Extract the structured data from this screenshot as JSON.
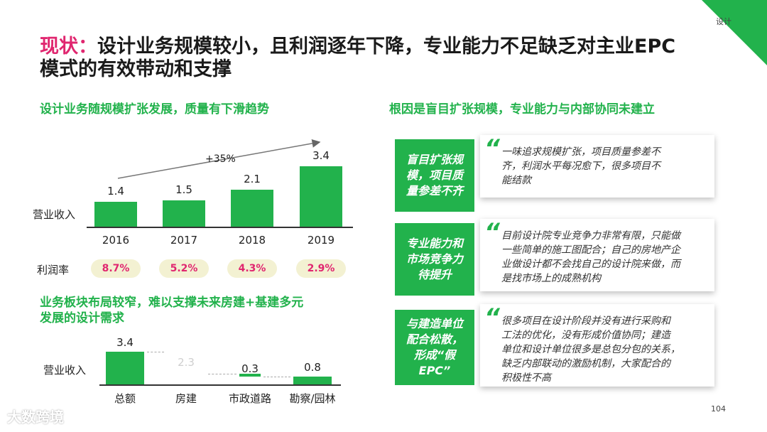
{
  "corner_label": "设计",
  "title": {
    "prefix": "现状：",
    "line1": "设计业务规模较小，且利润逐年下降，专业能力不足缺乏对主业EPC",
    "line2": "模式的有效带动和支撑"
  },
  "left_top": {
    "section_title": "设计业务随规模扩张发展，质量有下滑趋势",
    "growth_label": "+35%",
    "ylabel": "营业收入",
    "profit_label": "利润率",
    "chart_data": {
      "type": "bar",
      "categories": [
        "2016",
        "2017",
        "2018",
        "2019"
      ],
      "values": [
        1.4,
        1.5,
        2.1,
        3.4
      ],
      "value_labels": [
        "1.4",
        "1.5",
        "2.1",
        "3.4"
      ],
      "ylabel": "营业收入",
      "color": "#22b24c"
    },
    "profit_rates": [
      "8.7%",
      "5.2%",
      "4.3%",
      "2.9%"
    ]
  },
  "left_bottom": {
    "section_title_line1": "业务板块布局较窄，难以支撑未来房建+基建多元",
    "section_title_line2": "发展的设计需求",
    "ylabel": "营业收入",
    "chart_data": {
      "type": "bar",
      "categories": [
        "总额",
        "房建",
        "市政道路",
        "勘察/园林"
      ],
      "values": [
        3.4,
        2.3,
        0.3,
        0.8
      ],
      "value_labels": [
        "3.4",
        "2.3",
        "0.3",
        "0.8"
      ],
      "ylabel": "营业收入",
      "color": "#22b24c"
    }
  },
  "right": {
    "section_title": "根因是盲目扩张规模，专业能力与内部协同未建立",
    "items": [
      {
        "box_lines": [
          "盲目扩张规",
          "模，项目质",
          "量参差不齐"
        ],
        "quote_lines": [
          "一味追求规模扩张，项目质量参差不",
          "齐，利润水平每况愈下，很多项目不",
          "能结款"
        ]
      },
      {
        "box_lines": [
          "专业能力和",
          "市场竞争力",
          "待提升"
        ],
        "quote_lines": [
          "目前设计院专业竞争力非常有限，只能做",
          "一些简单的施工图配合；自己的房地产企",
          "业做设计都不会找自己的设计院来做，而",
          "是找市场上的成熟机构"
        ]
      },
      {
        "box_lines": [
          "与建造单位",
          "配合松散，",
          "形成“假",
          "EPC”"
        ],
        "quote_lines": [
          "很多项目在设计阶段并没有进行采购和",
          "工法的优化，没有形成价值协同；建造",
          "单位和设计单位很多是总包分包的关系，",
          "缺乏内部联动的激励机制，大家配合的",
          "积极性不高"
        ]
      }
    ]
  },
  "page_number": "104",
  "watermark": "大数跨境"
}
